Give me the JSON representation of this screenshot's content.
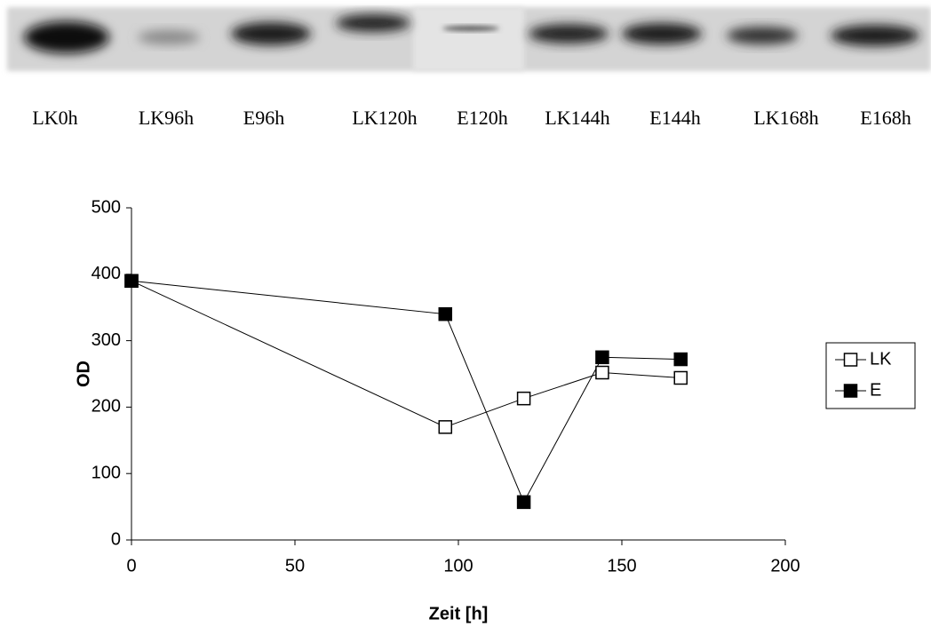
{
  "blot": {
    "lanes": [
      "LK0h",
      "LK96h",
      "E96h",
      "LK120h",
      "E120h",
      "LK144h",
      "E144h",
      "LK168h",
      "E168h"
    ]
  },
  "chart_data": {
    "type": "line",
    "x_label": "Zeit [h]",
    "y_label": "OD",
    "x": [
      0,
      96,
      120,
      144,
      168
    ],
    "series": [
      {
        "name": "LK",
        "color": "#000000",
        "marker_fill": "#ffffff",
        "values": [
          390,
          170,
          213,
          252,
          244
        ]
      },
      {
        "name": "E",
        "color": "#000000",
        "marker_fill": "#000000",
        "values": [
          390,
          340,
          57,
          275,
          272
        ]
      }
    ],
    "xlim": [
      0,
      200
    ],
    "xticks": [
      0,
      50,
      100,
      150,
      200
    ],
    "ylim": [
      0,
      500
    ],
    "yticks": [
      0,
      100,
      200,
      300,
      400,
      500
    ],
    "grid": false,
    "legend": "right"
  }
}
